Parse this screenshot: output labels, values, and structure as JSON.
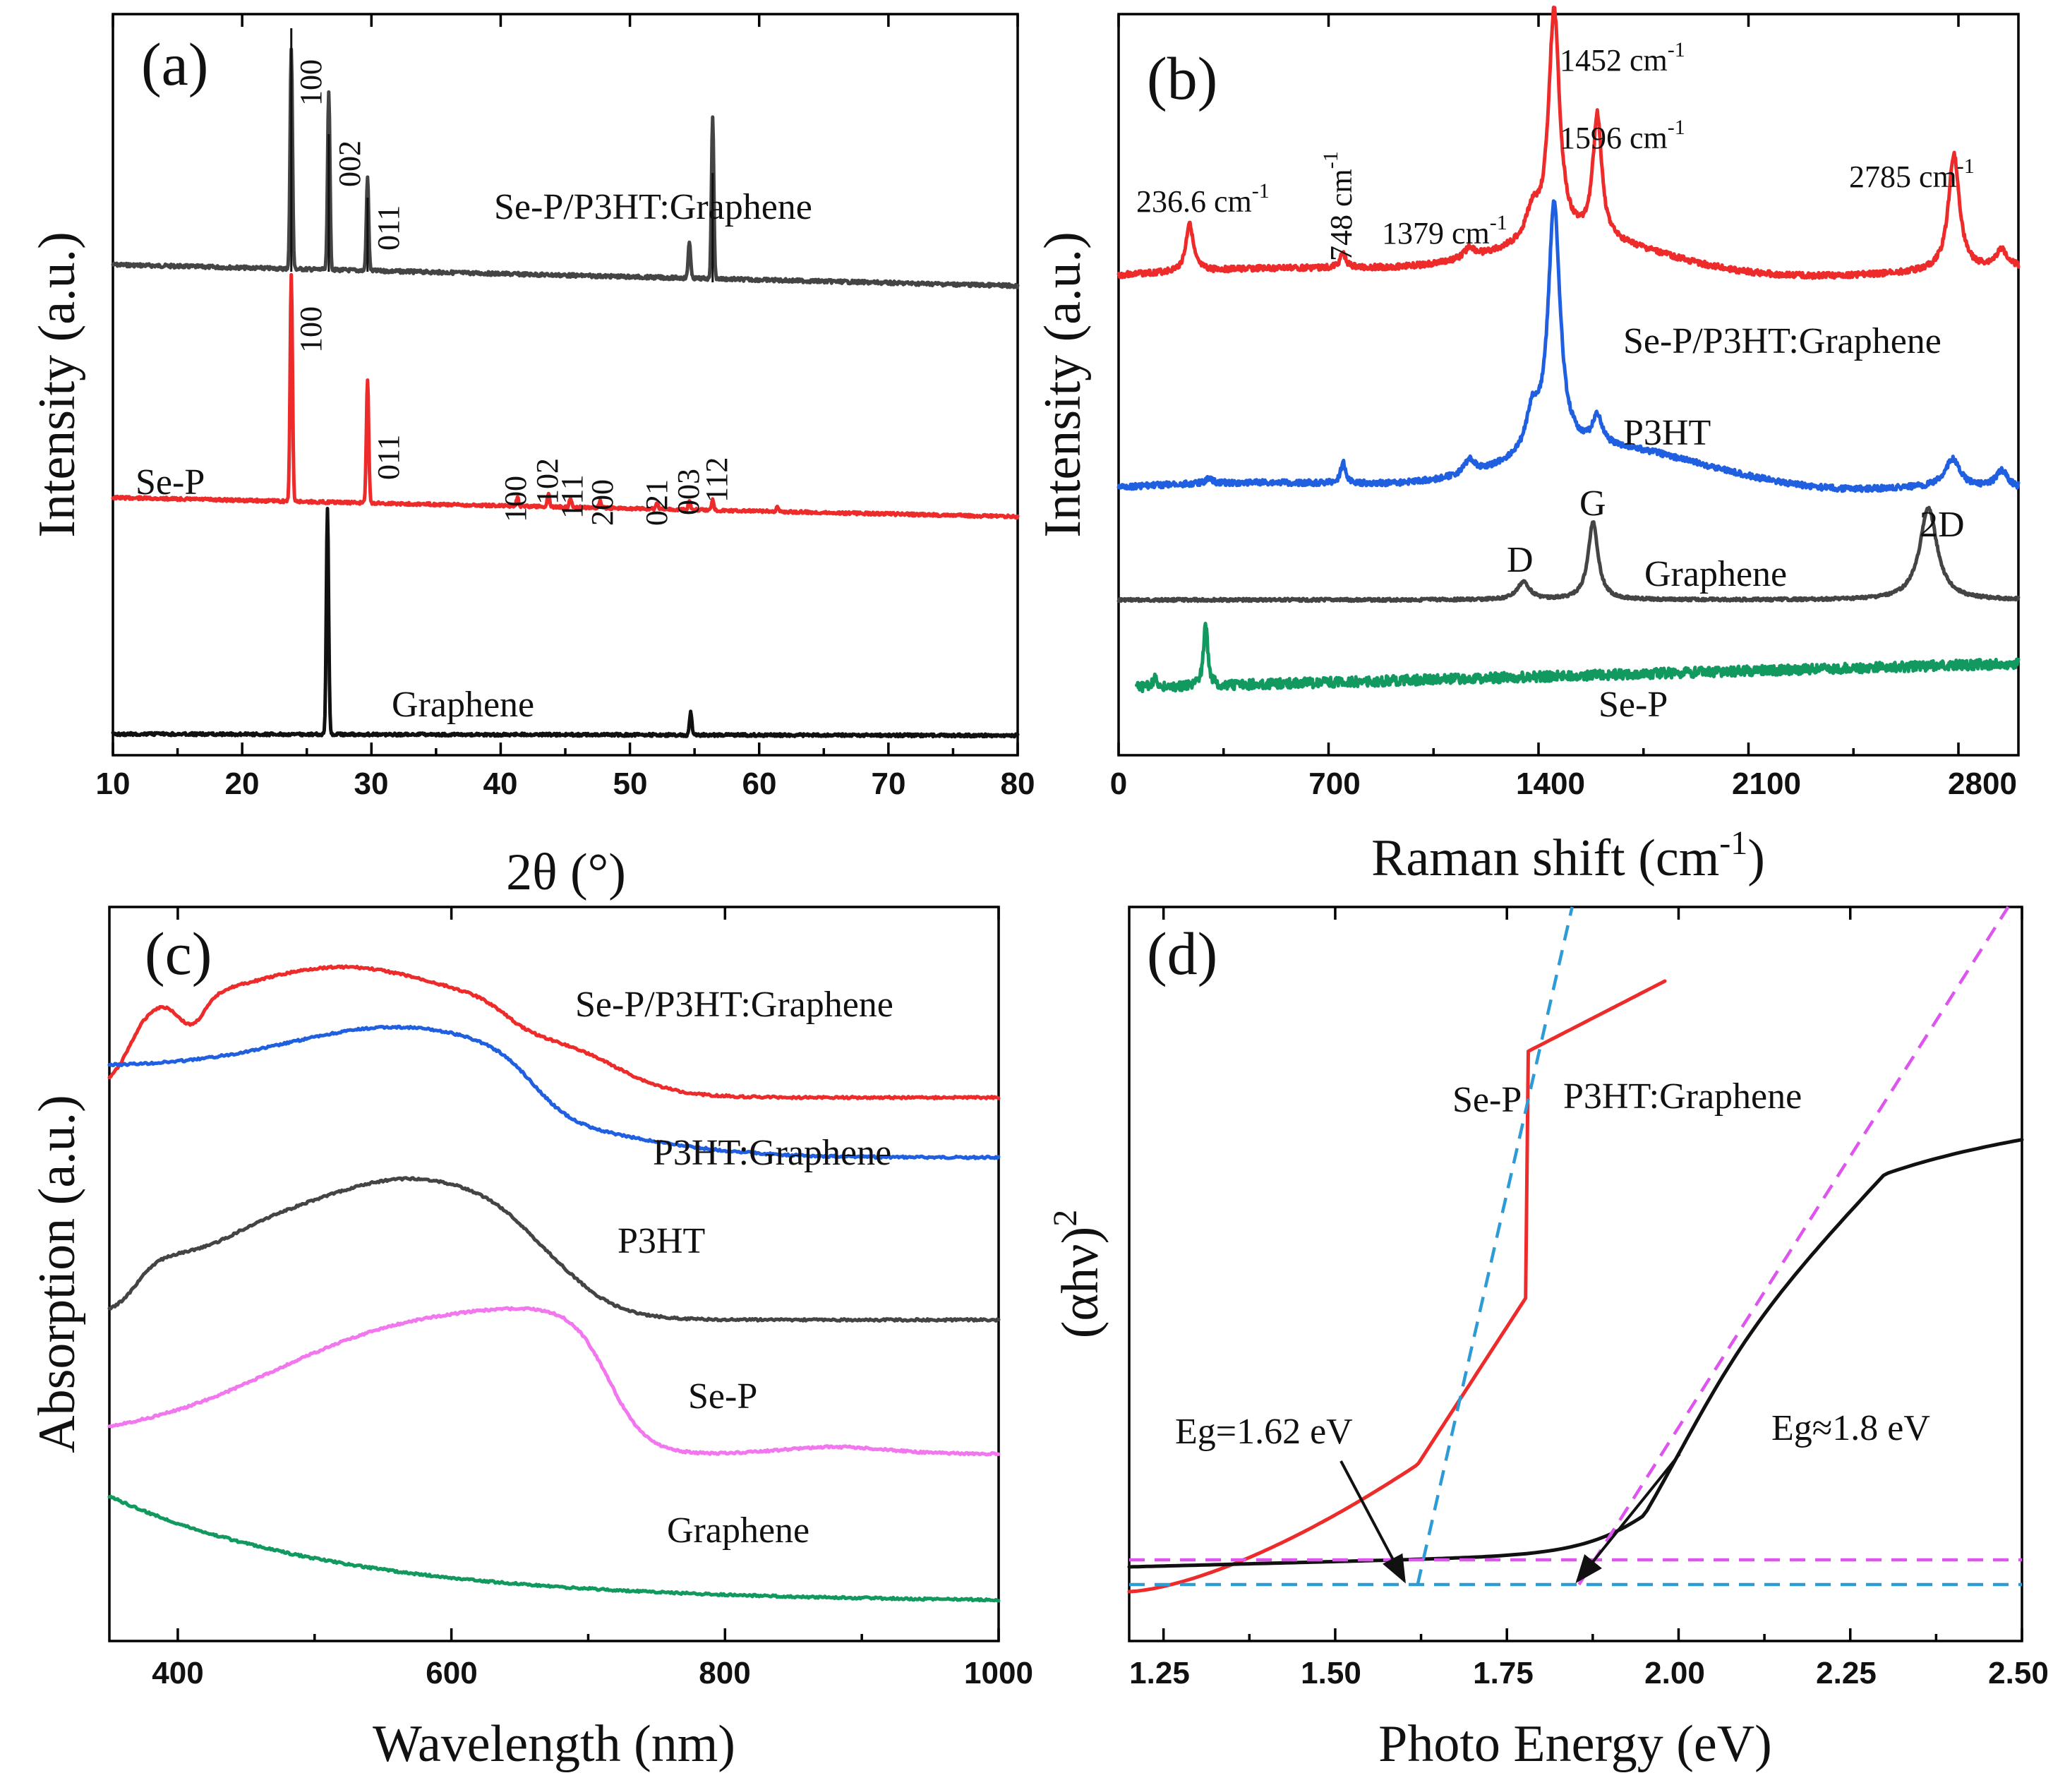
{
  "colors": {
    "red": "#ee2b2b",
    "blue": "#1f5fe0",
    "dark": "#444444",
    "black": "#111111",
    "green": "#119960",
    "pink": "#f277ee",
    "cyan": "#2d9bd6",
    "magenta": "#dd55ee"
  },
  "chart_data": [
    {
      "panel": "(a)",
      "type": "line",
      "xlabel": "2θ (°)",
      "ylabel": "Intensity (a.u.)",
      "xlim": [
        10,
        80
      ],
      "xticks": [
        "10",
        "20",
        "30",
        "40",
        "50",
        "60",
        "70",
        "80"
      ],
      "series": [
        {
          "name": "Se-P/P3HT:Graphene",
          "color": "dark",
          "baseline": 0.8,
          "label": "Se-P/P3HT:Graphene",
          "peaks": [
            [
              23.8,
              0.95
            ],
            [
              26.7,
              0.77
            ],
            [
              29.7,
              0.4
            ],
            [
              54.6,
              0.16
            ],
            [
              56.4,
              0.7
            ]
          ]
        },
        {
          "name": "Se-P",
          "color": "red",
          "baseline": 0.42,
          "label": "Se-P",
          "peaks": [
            [
              23.8,
              1.0
            ],
            [
              29.7,
              0.55
            ],
            [
              41.3,
              0.04
            ],
            [
              43.7,
              0.06
            ],
            [
              45.4,
              0.04
            ],
            [
              47.7,
              0.03
            ],
            [
              52.1,
              0.03
            ],
            [
              54.6,
              0.04
            ],
            [
              56.4,
              0.05
            ],
            [
              61.4,
              0.02
            ]
          ]
        },
        {
          "name": "Graphene",
          "color": "black",
          "baseline": 0.02,
          "label": "Graphene",
          "peaks": [
            [
              26.6,
              1.0
            ],
            [
              54.7,
              0.1
            ]
          ]
        }
      ],
      "peak_labels": [
        {
          "text": "100",
          "x": 23.8,
          "series": "Se-P/P3HT:Graphene"
        },
        {
          "text": "002",
          "x": 26.7,
          "series": "Se-P/P3HT:Graphene"
        },
        {
          "text": "011",
          "x": 29.7,
          "series": "Se-P/P3HT:Graphene"
        },
        {
          "text": "100",
          "x": 23.8,
          "series": "Se-P"
        },
        {
          "text": "011",
          "x": 29.7,
          "series": "Se-P"
        },
        {
          "text": "100",
          "x": 41.3,
          "series": "Se-P"
        },
        {
          "text": "102",
          "x": 43.7,
          "series": "Se-P"
        },
        {
          "text": "111",
          "x": 45.4,
          "series": "Se-P"
        },
        {
          "text": "200",
          "x": 47.7,
          "series": "Se-P"
        },
        {
          "text": "021",
          "x": 52.1,
          "series": "Se-P"
        },
        {
          "text": "003",
          "x": 54.6,
          "series": "Se-P"
        },
        {
          "text": "112",
          "x": 56.4,
          "series": "Se-P"
        }
      ]
    },
    {
      "panel": "(b)",
      "type": "line",
      "xlabel": "Raman shift (cm-1)",
      "ylabel": "Intensity (a.u.)",
      "xlim": [
        0,
        3000
      ],
      "xticks": [
        "0",
        "700",
        "1400",
        "2100",
        "2800"
      ],
      "series": [
        {
          "name": "Se-P/P3HT:Graphene",
          "color": "red",
          "label": "Se-P/P3HT:Graphene",
          "peaks": [
            [
              236.6,
              "236.6 cm-1"
            ],
            [
              748,
              "748 cm-1"
            ],
            [
              1379,
              "1379 cm-1"
            ],
            [
              1452,
              "1452 cm-1"
            ],
            [
              1596,
              "1596 cm-1"
            ],
            [
              2785,
              "2785 cm-1"
            ]
          ]
        },
        {
          "name": "P3HT",
          "color": "blue",
          "label": "P3HT"
        },
        {
          "name": "Graphene",
          "color": "dark",
          "label": "Graphene",
          "bands": [
            "D",
            "G",
            "2D"
          ]
        },
        {
          "name": "Se-P",
          "color": "green",
          "label": "Se-P"
        }
      ]
    },
    {
      "panel": "(c)",
      "type": "line",
      "xlabel": "Wavelength (nm)",
      "ylabel": "Absorption (a.u.)",
      "xlim": [
        350,
        1000
      ],
      "xticks": [
        "400",
        "600",
        "800",
        "1000"
      ],
      "series": [
        {
          "name": "Se-P/P3HT:Graphene",
          "color": "red",
          "label": "Se-P/P3HT:Graphene"
        },
        {
          "name": "P3HT:Graphene",
          "color": "blue",
          "label": "P3HT:Graphene"
        },
        {
          "name": "P3HT",
          "color": "dark",
          "label": "P3HT"
        },
        {
          "name": "Se-P",
          "color": "pink",
          "label": "Se-P"
        },
        {
          "name": "Graphene",
          "color": "green",
          "label": "Graphene"
        }
      ]
    },
    {
      "panel": "(d)",
      "type": "line",
      "xlabel": "Photo Energy (eV)",
      "ylabel": "(αhν)2",
      "xlim": [
        1.2,
        2.5
      ],
      "xticks": [
        "1.25",
        "1.50",
        "1.75",
        "2.00",
        "2.25",
        "2.50"
      ],
      "series": [
        {
          "name": "Se-P",
          "color": "red",
          "label": "Se-P",
          "bandgap_eV": 1.62,
          "annotation": "Eg=1.62 eV"
        },
        {
          "name": "P3HT:Graphene",
          "color": "black",
          "label": "P3HT:Graphene",
          "bandgap_eV": 1.8,
          "annotation": "Eg≈1.8 eV"
        }
      ]
    }
  ],
  "labels": {
    "a": {
      "letter": "(a)",
      "xlabel": "2θ (°)",
      "ylabel": "Intensity (a.u.)",
      "s1": "Se-P/P3HT:Graphene",
      "s2": "Se-P",
      "s3": "Graphene",
      "p1": "100",
      "p2": "002",
      "p3": "011",
      "p4": "100",
      "p5": "011",
      "p6": "100",
      "p7": "102",
      "p8": "111",
      "p9": "200",
      "p10": "021",
      "p11": "003",
      "p12": "112",
      "t10": "10",
      "t20": "20",
      "t30": "30",
      "t40": "40",
      "t50": "50",
      "t60": "60",
      "t70": "70",
      "t80": "80"
    },
    "b": {
      "letter": "(b)",
      "ylabel": "Intensity (a.u.)",
      "xlabel_main": "Raman shift (cm",
      "xlabel_sup": "-1",
      "xlabel_end": ")",
      "s1": "Se-P/P3HT:Graphene",
      "s2": "P3HT",
      "s3": "Graphene",
      "s4": "Se-P",
      "D": "D",
      "G": "G",
      "D2": "2D",
      "r1": "236.6 cm",
      "r2": "748 cm",
      "r3": "1379 cm",
      "r4": "1452 cm",
      "r5": "1596 cm",
      "r6": "2785 cm",
      "sup": "-1",
      "t0": "0",
      "t700": "700",
      "t1400": "1400",
      "t2100": "2100",
      "t2800": "2800"
    },
    "c": {
      "letter": "(c)",
      "xlabel": "Wavelength (nm)",
      "ylabel": "Absorption (a.u.)",
      "s1": "Se-P/P3HT:Graphene",
      "s2": "P3HT:Graphene",
      "s3": "P3HT",
      "s4": "Se-P",
      "s5": "Graphene",
      "t400": "400",
      "t600": "600",
      "t800": "800",
      "t1000": "1000"
    },
    "d": {
      "letter": "(d)",
      "xlabel": "Photo Energy (eV)",
      "ylabel_main": "(αhν)",
      "ylabel_sup": "2",
      "s1": "Se-P",
      "s2": "P3HT:Graphene",
      "eg1": "Eg=1.62 eV",
      "eg2": "Eg≈1.8 eV",
      "t125": "1.25",
      "t150": "1.50",
      "t175": "1.75",
      "t200": "2.00",
      "t225": "2.25",
      "t250": "2.50"
    }
  }
}
